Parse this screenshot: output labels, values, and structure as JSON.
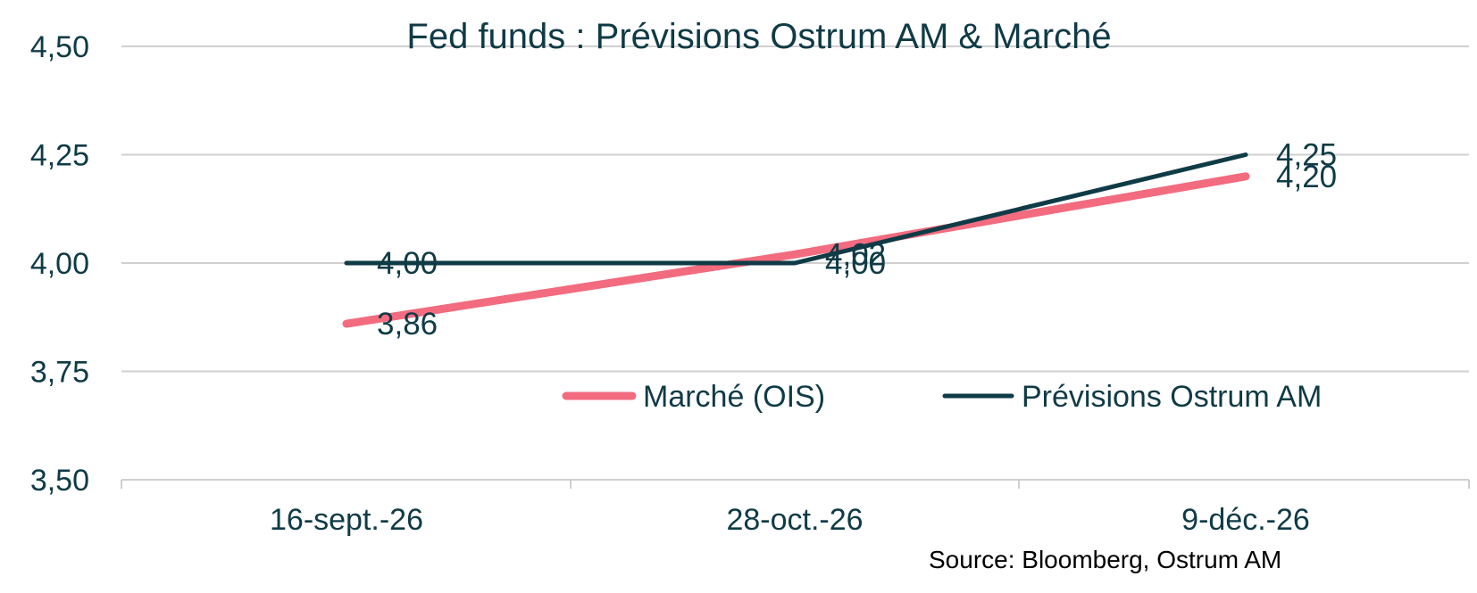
{
  "chart_data": {
    "type": "line",
    "title": "Fed funds : Prévisions Ostrum AM & Marché",
    "categories": [
      "16-sept.-26",
      "28-oct.-26",
      "9-déc.-26"
    ],
    "ylim": [
      3.5,
      4.5
    ],
    "yticks": [
      3.5,
      3.75,
      4.0,
      4.25,
      4.5
    ],
    "ytick_labels": [
      "3,50",
      "3,75",
      "4,00",
      "4,25",
      "4,50"
    ],
    "grid": true,
    "legend_position": "bottom-right",
    "series": [
      {
        "name": "Marché (OIS)",
        "values": [
          3.86,
          4.02,
          4.2
        ],
        "labels": [
          "3,86",
          "4,02",
          "4,20"
        ],
        "color": "#f26b7f"
      },
      {
        "name": "Prévisions Ostrum AM",
        "values": [
          4.0,
          4.0,
          4.25
        ],
        "labels": [
          "4,00",
          "4,00",
          "4,25"
        ],
        "color": "#0f3b46"
      }
    ],
    "source": "Source: Bloomberg, Ostrum AM"
  }
}
